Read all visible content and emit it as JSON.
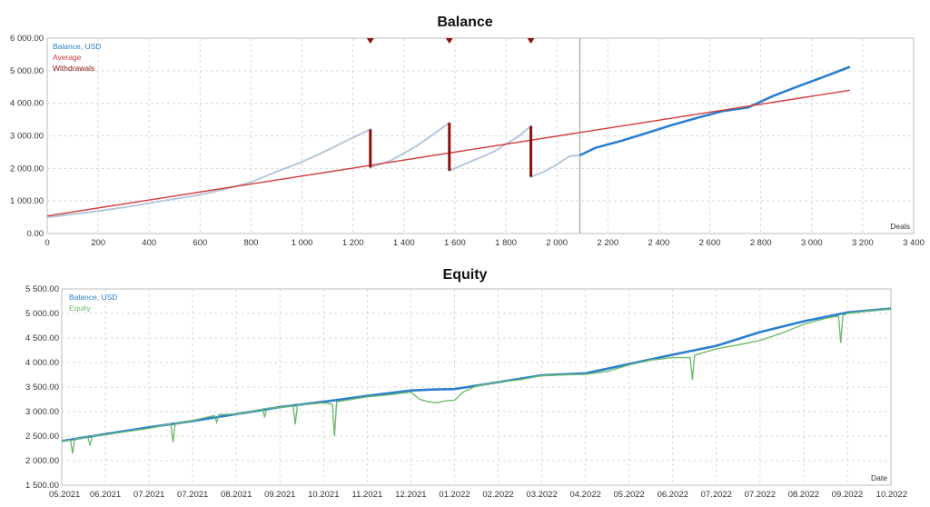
{
  "charts": {
    "balance": {
      "title": "Balance",
      "xaxis_name": "Deals"
    },
    "equity": {
      "title": "Equity",
      "xaxis_name": "Date"
    }
  },
  "colors": {
    "balance_faded": "#b4c8dc",
    "balance": "#2a7fcf",
    "average": "#d33b3b",
    "withdrawals": "#8b1010",
    "equity": "#6fbb6f",
    "grid": "#d9d9d9",
    "frame": "#bdbdbd"
  },
  "chart_data": [
    {
      "type": "line",
      "title": "Balance",
      "xlabel": "Deals",
      "ylabel": "",
      "xlim": [
        0,
        3400
      ],
      "ylim": [
        0,
        6000
      ],
      "x_ticks": [
        "0",
        "200",
        "400",
        "600",
        "800",
        "1 000",
        "1 200",
        "1 400",
        "1 600",
        "1 800",
        "2 000",
        "2 200",
        "2 400",
        "2 600",
        "2 800",
        "3 000",
        "3 200",
        "3 400"
      ],
      "y_ticks": [
        "0.00",
        "1 000.00",
        "2 000.00",
        "3 000.00",
        "4 000.00",
        "5 000.00",
        "6 000.00"
      ],
      "grid": true,
      "legend_position": "top-left",
      "out_of_sample_start": 2090,
      "series": [
        {
          "name": "Balance, USD",
          "x": [
            0,
            150,
            300,
            450,
            600,
            700,
            800,
            900,
            1000,
            1100,
            1200,
            1268,
            1268,
            1350,
            1450,
            1530,
            1578,
            1578,
            1650,
            1750,
            1850,
            1898,
            1898,
            1950,
            2000,
            2050,
            2090,
            2150,
            2250,
            2350,
            2450,
            2550,
            2650,
            2750,
            2850,
            2950,
            3050,
            3150
          ],
          "values": [
            500,
            640,
            800,
            1000,
            1190,
            1370,
            1580,
            1900,
            2200,
            2560,
            2950,
            3200,
            2030,
            2250,
            2690,
            3130,
            3400,
            1930,
            2170,
            2500,
            2990,
            3300,
            1740,
            1900,
            2120,
            2380,
            2400,
            2630,
            2840,
            3080,
            3330,
            3550,
            3760,
            3870,
            4230,
            4530,
            4820,
            5120
          ]
        },
        {
          "name": "Average",
          "x": [
            0,
            3150
          ],
          "values": [
            540,
            4400
          ]
        },
        {
          "name": "Withdrawals",
          "deals": [
            1268,
            1578,
            1898
          ],
          "from": [
            3200,
            3400,
            3300
          ],
          "to": [
            2030,
            1930,
            1740
          ]
        }
      ]
    },
    {
      "type": "line",
      "title": "Equity",
      "xlabel": "Date",
      "ylabel": "",
      "ylim": [
        1500,
        5500
      ],
      "x_ticks": [
        "05.2021",
        "06.2021",
        "07.2021",
        "07.2021",
        "08.2021",
        "09.2021",
        "10.2021",
        "11.2021",
        "12.2021",
        "01.2022",
        "02.2022",
        "03.2022",
        "04.2022",
        "05.2022",
        "06.2022",
        "07.2022",
        "07.2022",
        "08.2022",
        "09.2022",
        "10.2022"
      ],
      "y_ticks": [
        "1 500.00",
        "2 000.00",
        "2 500.00",
        "3 000.00",
        "3 500.00",
        "4 000.00",
        "4 500.00",
        "5 000.00",
        "5 500.00"
      ],
      "grid": true,
      "legend_position": "top-left",
      "series": [
        {
          "name": "Balance, USD",
          "x": [
            0,
            1,
            2,
            3,
            4,
            5,
            6,
            7,
            8,
            8.5,
            9,
            10,
            11,
            12,
            13,
            14,
            15,
            16,
            17,
            18,
            19
          ],
          "values": [
            2400,
            2540,
            2680,
            2810,
            2950,
            3090,
            3200,
            3320,
            3430,
            3450,
            3460,
            3600,
            3740,
            3780,
            3970,
            4160,
            4340,
            4620,
            4840,
            5020,
            5100
          ]
        },
        {
          "name": "Equity",
          "x": [
            0,
            0.2,
            0.25,
            0.3,
            0.6,
            0.65,
            0.7,
            1,
            2,
            2.5,
            2.55,
            2.6,
            3,
            3.5,
            3.55,
            3.6,
            4,
            4.6,
            4.65,
            4.7,
            5,
            5.3,
            5.35,
            5.4,
            6,
            6.2,
            6.25,
            6.3,
            7,
            7.5,
            8,
            8.2,
            8.4,
            8.6,
            8.8,
            9,
            9.2,
            9.5,
            10,
            10.5,
            11,
            11.5,
            12,
            12.5,
            13,
            13.5,
            14,
            14.4,
            14.45,
            14.5,
            15,
            15.5,
            16,
            16.5,
            17,
            17.5,
            17.8,
            17.85,
            17.9,
            18,
            19
          ],
          "values": [
            2400,
            2420,
            2150,
            2440,
            2480,
            2310,
            2500,
            2530,
            2660,
            2750,
            2380,
            2760,
            2820,
            2920,
            2780,
            2940,
            2950,
            3050,
            2880,
            3070,
            3080,
            3120,
            2740,
            3130,
            3180,
            3150,
            2500,
            3200,
            3300,
            3340,
            3400,
            3250,
            3200,
            3180,
            3220,
            3230,
            3400,
            3520,
            3600,
            3650,
            3730,
            3750,
            3760,
            3820,
            3950,
            4050,
            4100,
            4100,
            3650,
            4150,
            4280,
            4360,
            4450,
            4600,
            4780,
            4900,
            4950,
            4400,
            4960,
            5000,
            5100
          ]
        }
      ]
    }
  ]
}
